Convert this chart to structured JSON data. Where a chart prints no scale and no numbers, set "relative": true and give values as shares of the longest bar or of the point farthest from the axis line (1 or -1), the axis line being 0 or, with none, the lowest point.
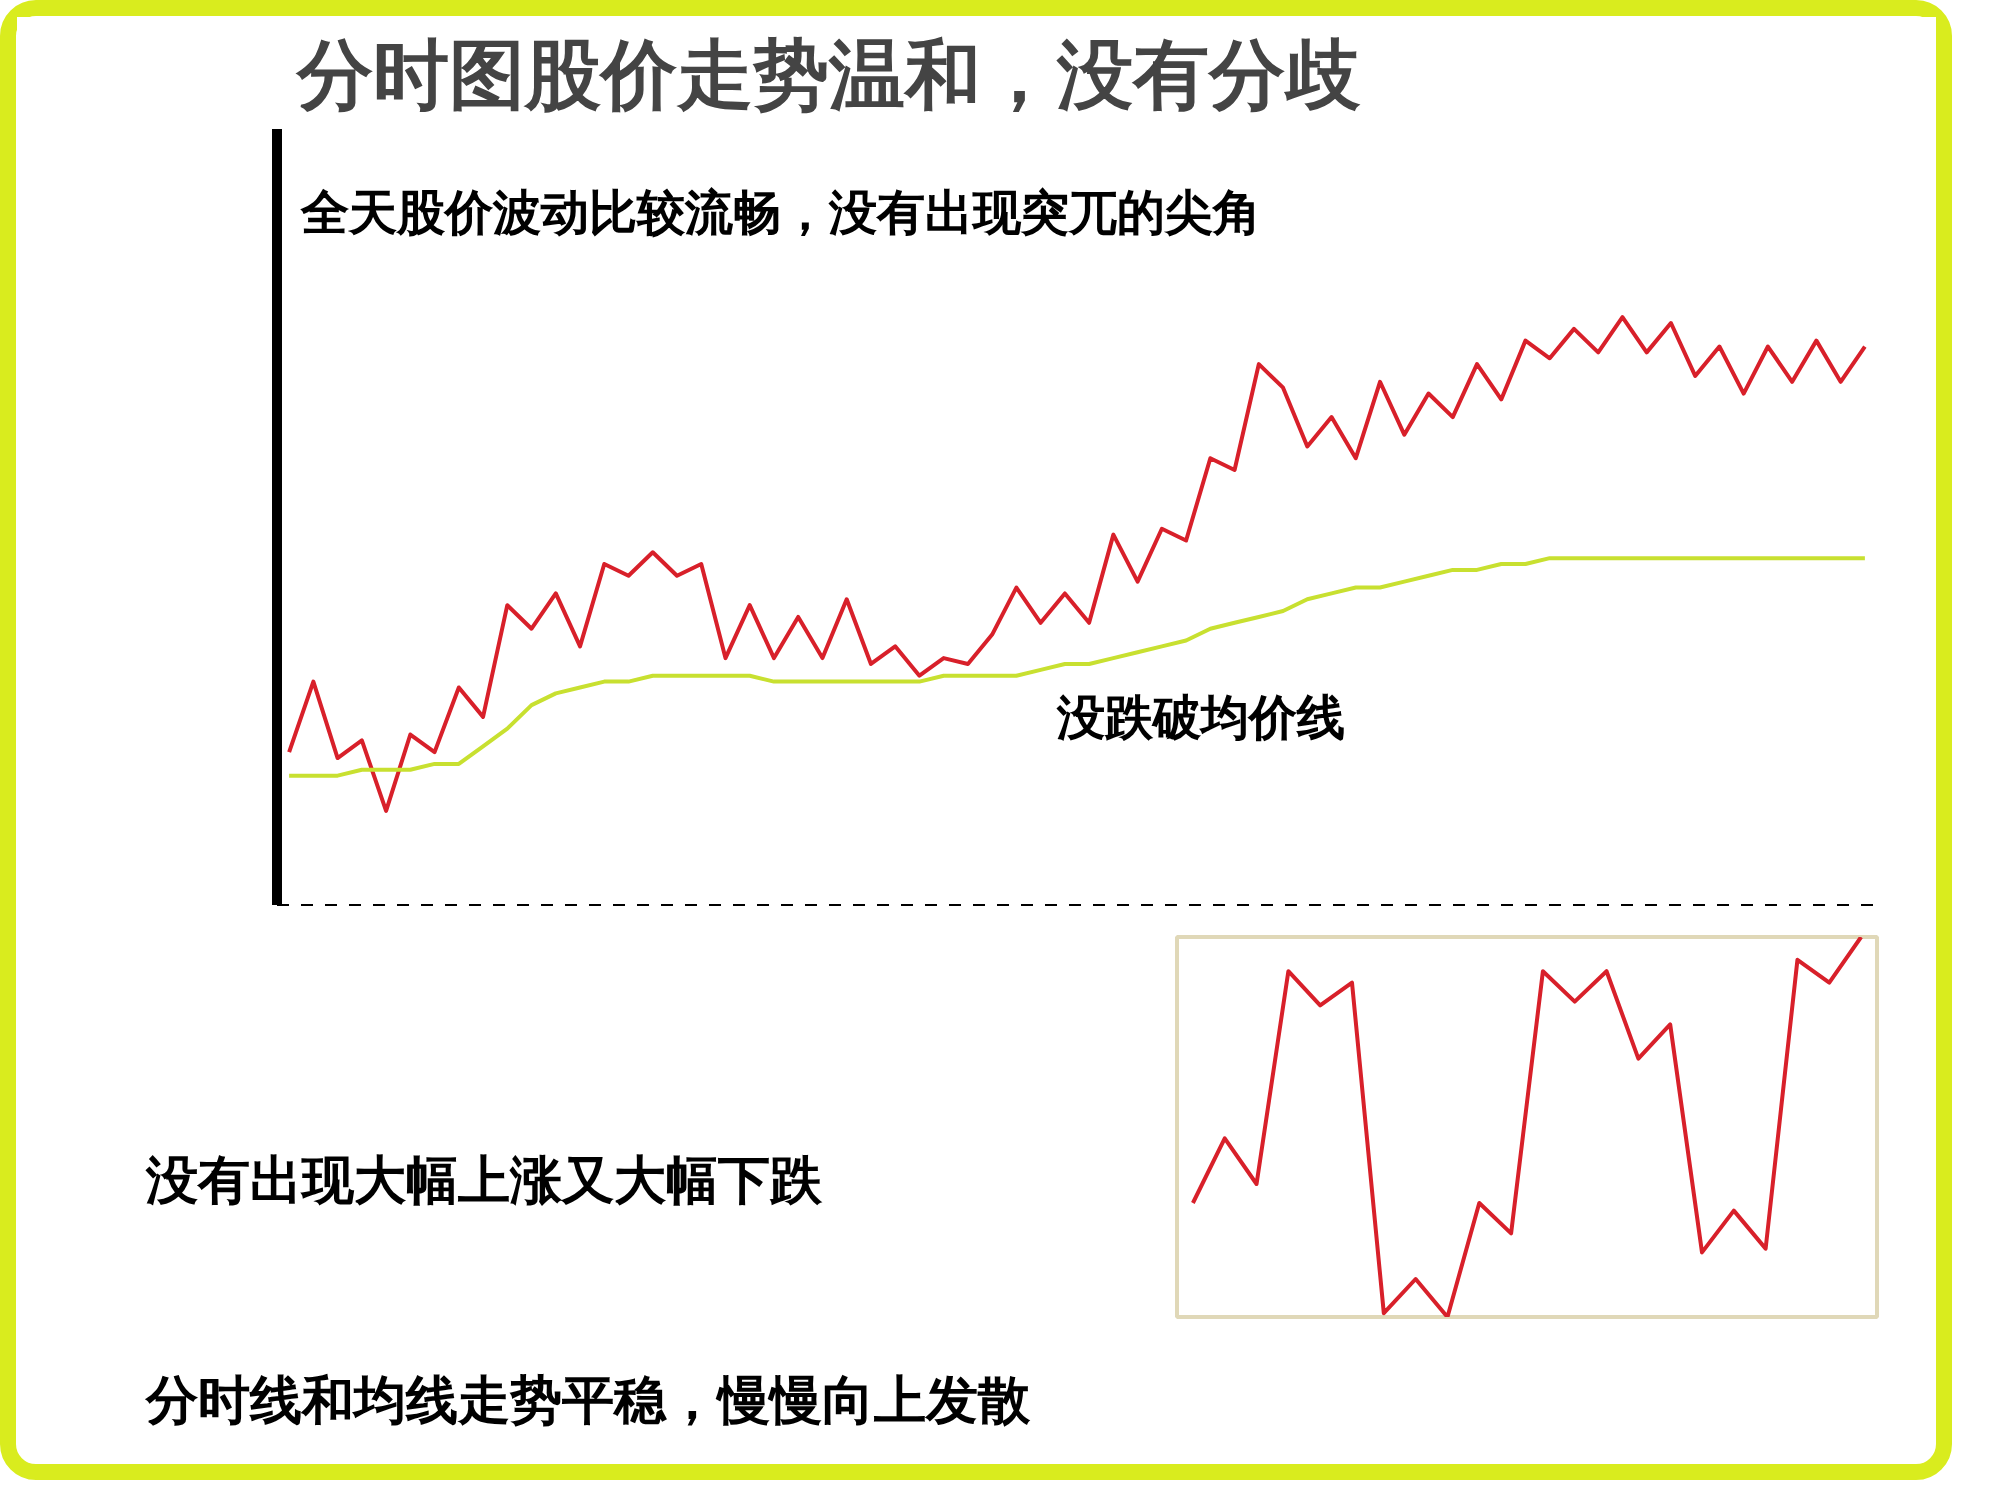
{
  "chart_data": [
    {
      "type": "line",
      "title": "分时图股价走势温和，没有分歧",
      "relative": true,
      "line_style": "solid",
      "annotations": [
        "全天股价波动比较流畅，没有出现突兀的尖角",
        "没跌破均价线",
        "分时线和均线走势平稳，慢慢向上发散"
      ],
      "categories": [
        null,
        null,
        null,
        null,
        null,
        null,
        null,
        null,
        null,
        null,
        null,
        null,
        null,
        null,
        null,
        null,
        null,
        null,
        null,
        null,
        null,
        null,
        null,
        null,
        null,
        null,
        null,
        null,
        null,
        null,
        null,
        null,
        null,
        null,
        null,
        null,
        null,
        null,
        null,
        null,
        null,
        null,
        null,
        null,
        null,
        null,
        null,
        null,
        null,
        null,
        null,
        null,
        null,
        null,
        null,
        null,
        null,
        null,
        null,
        null,
        null,
        null,
        null,
        null,
        null,
        null
      ],
      "series": [
        {
          "color": "#d8202a",
          "values": [
            0.26,
            0.38,
            0.25,
            0.28,
            0.16,
            0.29,
            0.26,
            0.37,
            0.32,
            0.51,
            0.47,
            0.53,
            0.44,
            0.58,
            0.56,
            0.6,
            0.56,
            0.58,
            0.42,
            0.51,
            0.42,
            0.49,
            0.42,
            0.52,
            0.41,
            0.44,
            0.39,
            0.42,
            0.41,
            0.46,
            0.54,
            0.48,
            0.53,
            0.48,
            0.63,
            0.55,
            0.64,
            0.62,
            0.76,
            0.74,
            0.92,
            0.88,
            0.78,
            0.83,
            0.76,
            0.89,
            0.8,
            0.87,
            0.83,
            0.92,
            0.86,
            0.96,
            0.93,
            0.98,
            0.94,
            1,
            0.94,
            0.99,
            0.9,
            0.95,
            0.87,
            0.95,
            0.89,
            0.96,
            0.89,
            0.95
          ]
        },
        {
          "color": "#c8e030",
          "values": [
            0.22,
            0.22,
            0.22,
            0.23,
            0.23,
            0.23,
            0.24,
            0.24,
            0.27,
            0.3,
            0.34,
            0.36,
            0.37,
            0.38,
            0.38,
            0.39,
            0.39,
            0.39,
            0.39,
            0.39,
            0.38,
            0.38,
            0.38,
            0.38,
            0.38,
            0.38,
            0.38,
            0.39,
            0.39,
            0.39,
            0.39,
            0.4,
            0.41,
            0.41,
            0.42,
            0.43,
            0.44,
            0.45,
            0.47,
            0.48,
            0.49,
            0.5,
            0.52,
            0.53,
            0.54,
            0.54,
            0.55,
            0.56,
            0.57,
            0.57,
            0.58,
            0.58,
            0.59,
            0.59,
            0.59,
            0.59,
            0.59,
            0.59,
            0.59,
            0.59,
            0.59,
            0.59,
            0.59,
            0.59,
            0.59,
            0.59
          ]
        }
      ]
    },
    {
      "type": "line",
      "relative": true,
      "line_style": "solid",
      "annotations": [
        "没有出现大幅上涨又大幅下跌"
      ],
      "categories": [
        null,
        null,
        null,
        null,
        null,
        null,
        null,
        null,
        null,
        null,
        null,
        null,
        null,
        null,
        null,
        null,
        null,
        null,
        null,
        null,
        null,
        null
      ],
      "series": [
        {
          "color": "#d8202a",
          "values": [
            0.3,
            0.47,
            0.35,
            0.91,
            0.82,
            0.88,
            0.01,
            0.1,
            0,
            0.3,
            0.22,
            0.91,
            0.83,
            0.91,
            0.68,
            0.77,
            0.17,
            0.28,
            0.18,
            0.94,
            0.88,
            1
          ]
        }
      ]
    }
  ]
}
